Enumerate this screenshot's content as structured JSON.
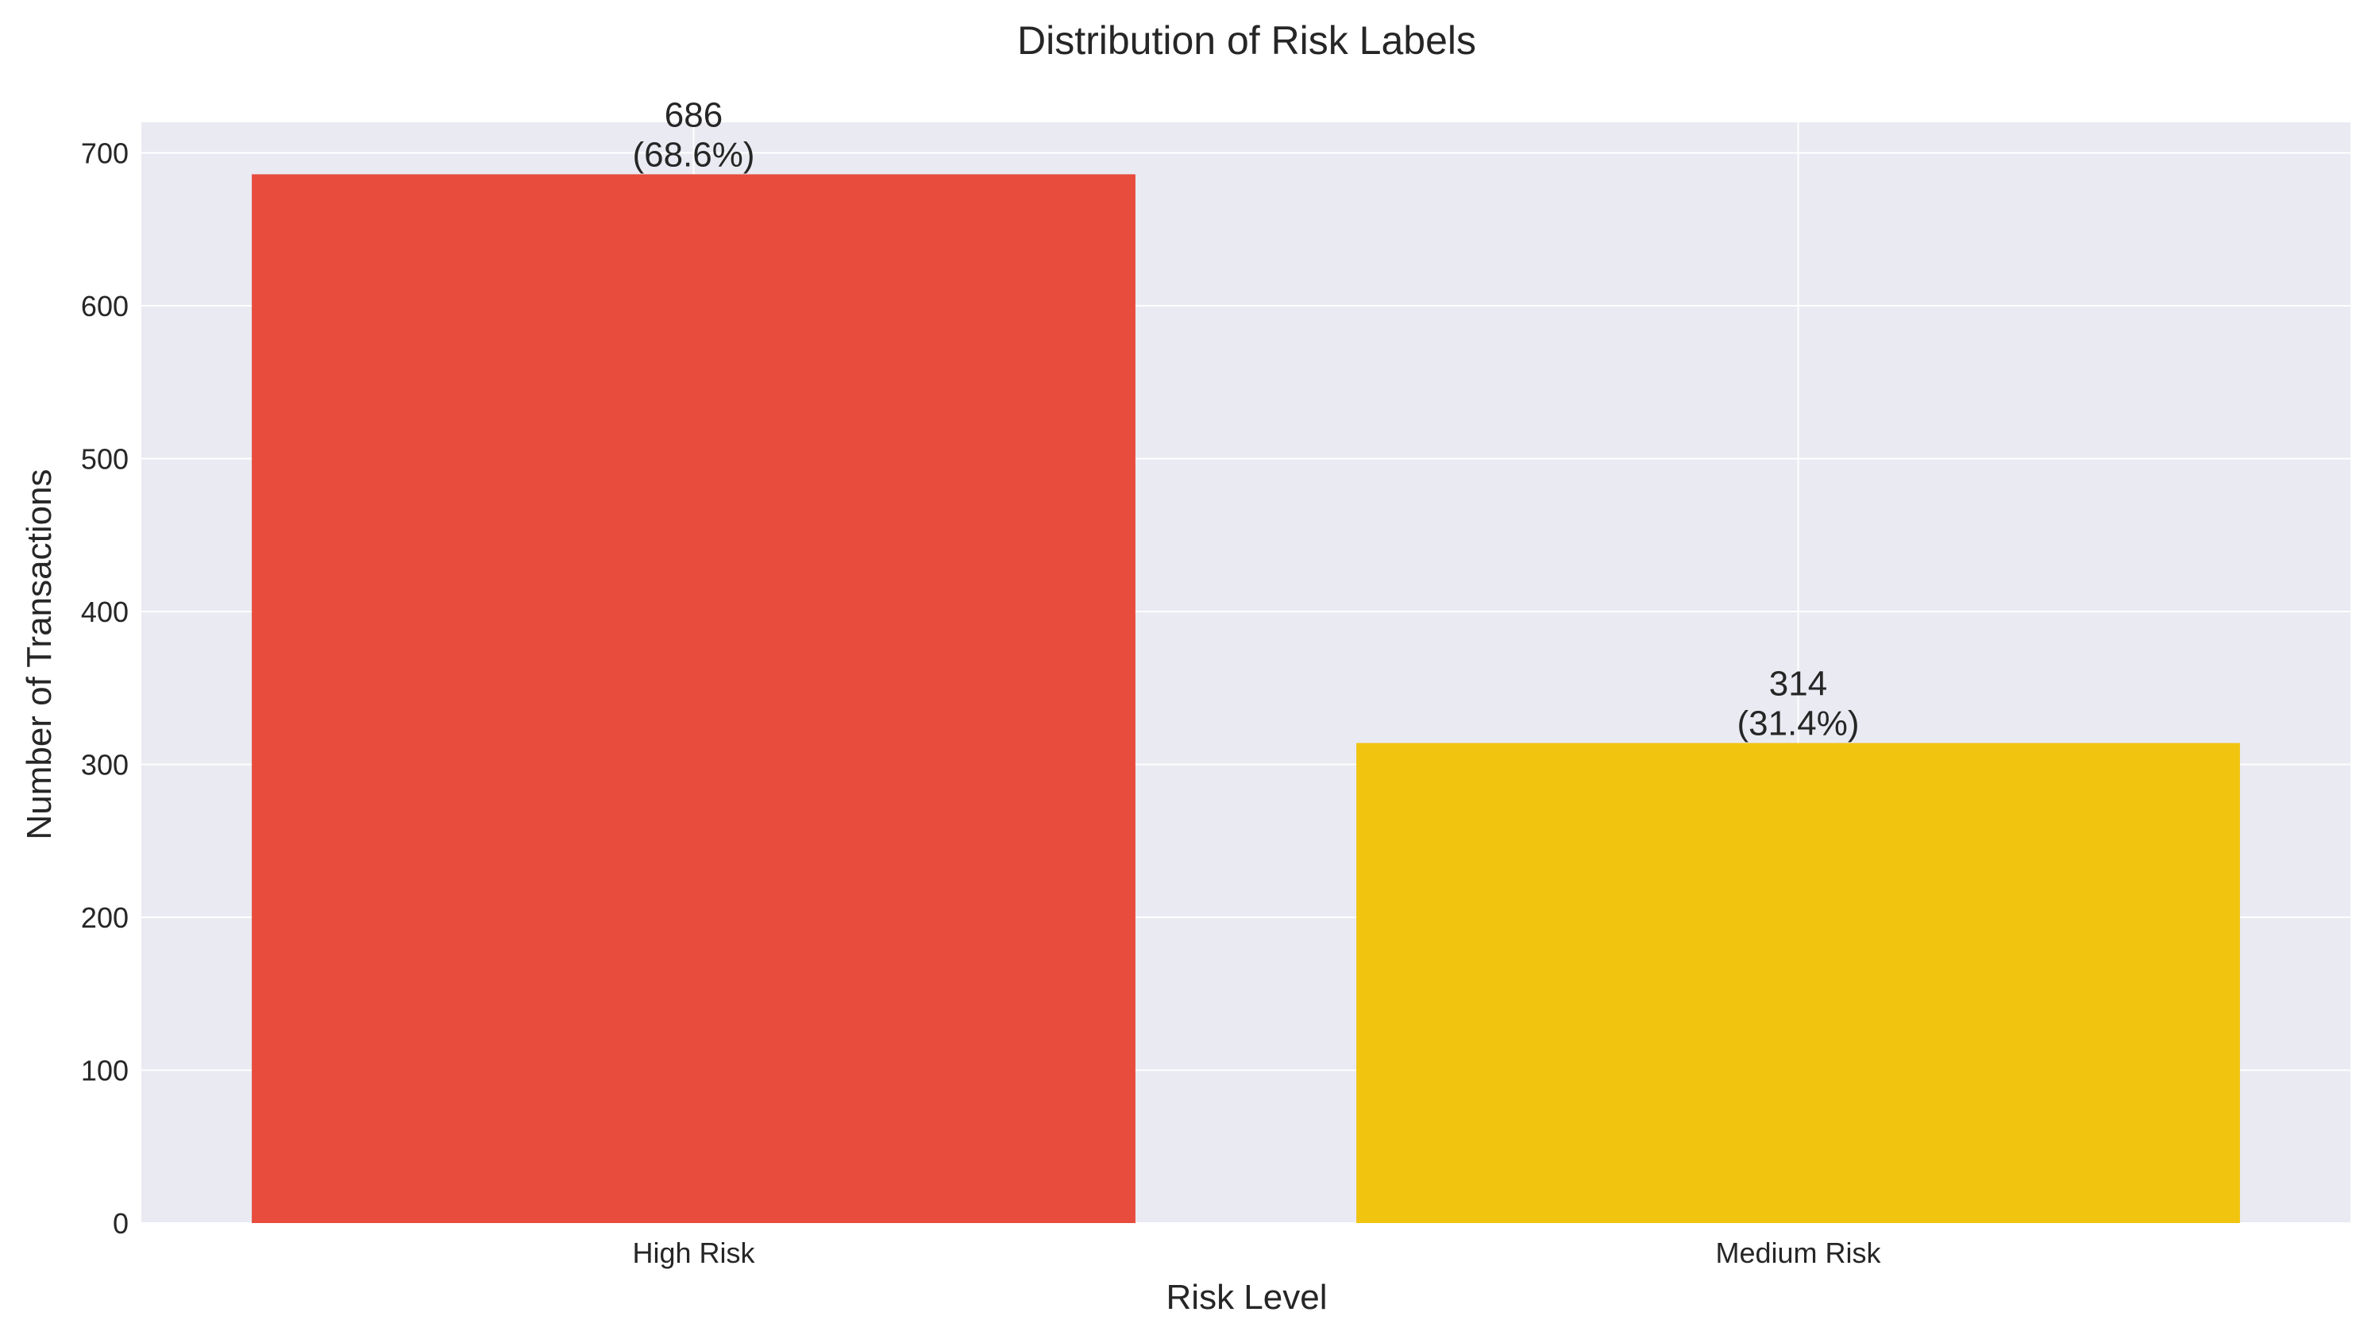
{
  "chart_data": {
    "type": "bar",
    "title": "Distribution of Risk Labels",
    "xlabel": "Risk Level",
    "ylabel": "Number of Transactions",
    "categories": [
      "High Risk",
      "Medium Risk"
    ],
    "values": [
      686,
      314
    ],
    "bar_labels": [
      {
        "count": "686",
        "percent": "(68.6%)"
      },
      {
        "count": "314",
        "percent": "(31.4%)"
      }
    ],
    "bar_colors": [
      "#e74c3c",
      "#f1c40f"
    ],
    "ylim": [
      0,
      720
    ],
    "yticks": [
      0,
      100,
      200,
      300,
      400,
      500,
      600,
      700
    ],
    "grid": true,
    "background_color": "#eaeaf2",
    "grid_color": "#ffffff"
  }
}
